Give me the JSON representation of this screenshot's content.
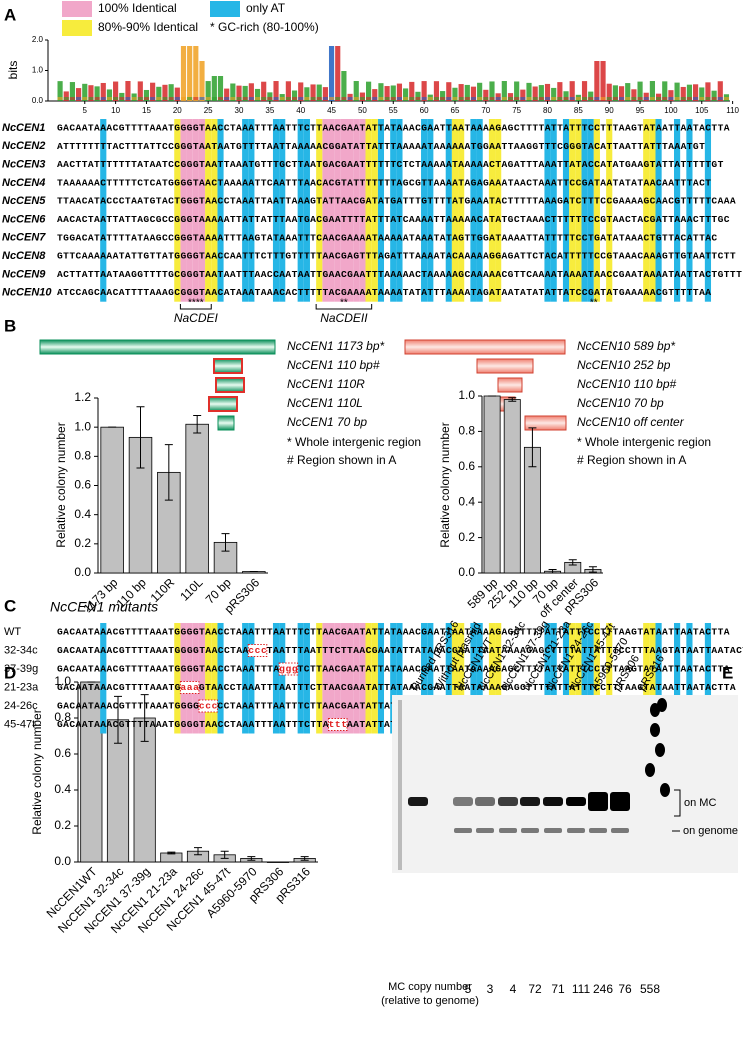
{
  "panel_labels": [
    "A",
    "B",
    "C",
    "D",
    "E"
  ],
  "panel_a": {
    "legend": [
      {
        "label": "100% Identical",
        "color": "#f1a7c9"
      },
      {
        "label": "only AT",
        "color": "#26b6e6"
      },
      {
        "label": "80%-90% Identical",
        "color": "#f7ec3d"
      },
      {
        "label": "* GC-rich (80-100%)",
        "color": null
      }
    ],
    "logo": {
      "ylabel": "bits",
      "ylim": [
        0,
        2
      ],
      "yticks": [
        {
          "value": 0,
          "label": "0.0"
        },
        {
          "value": 1,
          "label": "1.0"
        },
        {
          "value": 2,
          "label": "2.0"
        }
      ],
      "xticks": [
        5,
        10,
        15,
        20,
        25,
        30,
        35,
        40,
        45,
        50,
        55,
        60,
        65,
        70,
        75,
        80,
        85,
        90,
        95,
        100,
        105,
        110
      ]
    },
    "sequences": [
      {
        "name": "NcCEN1",
        "seq": "GACAATAAACGTTTTAAATGGGGTAACCTAAATTTAATTTCTTAACGAATATTATAAACGAATTAATAAAAGAGCTTTTATTATTTCCTTTAAGTATAATTAATACTTA"
      },
      {
        "name": "NcCEN2",
        "seq": "ATTTTTTTTACTTTATTCCGGGTAATAATGTTTTAATTAAAAACGGATATTATTTAAAAATAAAAAATGGAATTAAGGTTTCGGGTACATTAATTATTTAAATGT"
      },
      {
        "name": "NcCEN3",
        "seq": "AACTTATTTTTTTATAATCCGGGTAATTAAATGTTTGCTTAATGACGAATTTTTTCTCTAAAAATAAAAACTAGATTTAAATTATACCATATGAAGTATTATTTTTGT"
      },
      {
        "name": "NcCEN4",
        "seq": "TAAAAAACTTTTTCTCATGGGGTAACTAAAAATTCAATTTAACACGTATTTTTTTAGCGTTAAAATAGAGAAATAACTAAATTCCGATAATATATAACAATTTACT"
      },
      {
        "name": "NcCEN5",
        "seq": "TTAACATACCCTAATGTACTGGGTAACCTAAATTAATTAAAGTATTAACGATATGATTTGTTTTATGAAATACTTTTTAAAGATCTTTCCGAAAAGCAACGTTTTTCAAA"
      },
      {
        "name": "NcCEN6",
        "seq": "AACACTAATTATTAGCGCCGGGTAAAAATTATTATTTAATGACGAATTTTATTTATCAAAATTAAAAACATATGCTAAACTTTTTTCCGTAACTACGATTAAACTTTGC"
      },
      {
        "name": "NcCEN7",
        "seq": "TGGACATATTTTATAAGCCGGGTAAAATTTAAGTATAAATTTCAACGAAAATAAAAATAAATATAGTTGGATAAAATTATTTTTCCTGATATAAACTGTTACATTAC"
      },
      {
        "name": "NcCEN8",
        "seq": "GTTCAAAAAATATTGTTATGGGGTAACCAATTTCTTTGTTTTTAACGAGTTTAGATTTAAAATACAAAAAGGAGATTCTACATTTTTCCGTAAACAAAGTTGTAATTCTT"
      },
      {
        "name": "NcCEN9",
        "seq": "ACTTATTAATAAGGTTTTGCGGGTAATAATTTAACCAATAATTGAACGAATTTAAAAACTAAAAAGCAAAAACGTTCAAAATAAAATAACCGAATAAAATAATTACTGTTT"
      },
      {
        "name": "NcCEN10",
        "seq": "ATCCAGCAACATTTTAAAGCGGGTAACATAAATAAACACTTTTTACGAAAATAAAATATATTTAAAATAGATAATATATATTATCCGATATGAAAAACGTTTTTAA"
      }
    ],
    "brackets": [
      {
        "stars": "****",
        "label": "NaCDEI"
      },
      {
        "stars": "**",
        "label": "NaCDEII"
      }
    ],
    "extra_stars": "**"
  },
  "panel_b": {
    "constructs_left": [
      "NcCEN1 1173 bp*",
      "NcCEN1 110 bp#",
      "NcCEN1 110R",
      "NcCEN1 110L",
      "NcCEN1 70 bp"
    ],
    "constructs_right": [
      "NcCEN10 589 bp*",
      "NcCEN10 252 bp",
      "NcCEN10 110 bp#",
      "NcCEN10 70 bp",
      "NcCEN10 off center"
    ],
    "notes": [
      "* Whole intergenic region",
      "# Region shown in A"
    ]
  },
  "panel_c": {
    "title": "NcCEN1 mutants",
    "wt_label": "WT",
    "mutants": [
      {
        "label": "32-34c",
        "before": "GACAATAAACGTTTTAAATGGGGTAACCTAA",
        "mut": "ccc",
        "after": "TAATTTAATTTCTTAACGAATATTATAAACGAATTAATAAAAGAGCTTTTATTATTTCCTTTAAGTATAATTAATACTTA"
      },
      {
        "label": "37-39g",
        "before": "GACAATAAACGTTTTAAATGGGGTAACCTAAATTTA",
        "mut": "ggg",
        "after": "TCTTAACGAATATTATAAACGAATTAATAAAAGAGCTTTTATTATTTCCTTTAAGTATAATTAATACTTA"
      },
      {
        "label": "21-23a",
        "before": "GACAATAAACGTTTTAAATG",
        "mut": "aaa",
        "after": "GTAACCTAAATTTAATTTCTTAACGAATATTATAAACGAATTAATAAAAGAGCTTTTATTATTTCCTTTAAGTATAATTAATACTTA"
      },
      {
        "label": "24-26c",
        "before": "GACAATAAACGTTTTAAATGGGG",
        "mut": "ccc",
        "after": "CCTAAATTTAATTTCTTAACGAATATTATAAACGAATTAATAAAAGAGCTTTTATTATTTCCTTTAAGTATAATTAATACTTA"
      },
      {
        "label": "45-47t",
        "before": "GACAATAAACGTTTTAAATGGGGTAACCTAAATTTAATTTCTTA",
        "mut": "ttt",
        "after": "AATATTATAAACGAATTAATAAAAGAGCTTTTATTATTTCCTTTAAGTATAATTAATACTTA"
      }
    ]
  },
  "panel_e": {
    "lanes": [
      "Purified pRS316",
      "Without plasmid",
      "NcCEN1WT",
      "NcCEN1 32-34c",
      "NcCEN1 37-39g",
      "NcCEN1 21-23a",
      "NcCEN1 24-26c",
      "NcCEN1 45-47t",
      "A5960-5970",
      "pRS306",
      "pRS316"
    ],
    "band_labels": [
      "on MC",
      "on genome"
    ],
    "copy_label": [
      "MC copy number",
      "(relative to genome)"
    ],
    "copy_numbers": [
      5,
      3,
      4,
      72,
      71,
      111,
      246,
      76,
      558
    ]
  },
  "chart_data": [
    {
      "type": "bar",
      "ylabel": "Relative colony number",
      "color": "#c0c0c0",
      "categories": [
        "1173 bp",
        "110 bp",
        "110R",
        "110L",
        "70 bp",
        "pRS306"
      ],
      "values": [
        1.0,
        0.93,
        0.69,
        1.02,
        0.21,
        0.01
      ],
      "errors": [
        0,
        0.21,
        0.19,
        0.06,
        0.06,
        0
      ],
      "ylim": [
        0,
        1.2
      ],
      "yticks": [
        {
          "value": 0,
          "label": "0.0"
        },
        {
          "value": 0.2,
          "label": "0.2"
        },
        {
          "value": 0.4,
          "label": "0.4"
        },
        {
          "value": 0.6,
          "label": "0.6"
        },
        {
          "value": 0.8,
          "label": "0.8"
        },
        {
          "value": 1,
          "label": "1.0"
        },
        {
          "value": 1.2,
          "label": "1.2"
        }
      ]
    },
    {
      "type": "bar",
      "ylabel": "Relative colony number",
      "color": "#c0c0c0",
      "categories": [
        "589 bp",
        "252 bp",
        "110 bp",
        "70 bp",
        "off center",
        "pRS306"
      ],
      "values": [
        1.0,
        0.98,
        0.71,
        0.01,
        0.06,
        0.02
      ],
      "errors": [
        0,
        0.01,
        0.11,
        0.01,
        0.015,
        0.015
      ],
      "ylim": [
        0,
        1
      ],
      "yticks": [
        {
          "value": 0,
          "label": "0.0"
        },
        {
          "value": 0.2,
          "label": "0.2"
        },
        {
          "value": 0.4,
          "label": "0.4"
        },
        {
          "value": 0.6,
          "label": "0.6"
        },
        {
          "value": 0.8,
          "label": "0.8"
        },
        {
          "value": 1,
          "label": "1.0"
        }
      ]
    },
    {
      "type": "bar",
      "ylabel": "Relative colony number",
      "color": "#c0c0c0",
      "categories": [
        "NcCEN1WT",
        "NcCEN1 32-34c",
        "NcCEN1 37-39g",
        "NcCEN1 21-23a",
        "NcCEN1 24-26c",
        "NcCEN1 45-47t",
        "A5960-5970",
        "pRS306",
        "pRS316"
      ],
      "values": [
        1.0,
        0.79,
        0.8,
        0.05,
        0.06,
        0.04,
        0.02,
        0.0,
        0.02
      ],
      "errors": [
        0,
        0.13,
        0.13,
        0.005,
        0.02,
        0.02,
        0.01,
        0,
        0.01
      ],
      "ylim": [
        0,
        1
      ],
      "yticks": [
        {
          "value": 0,
          "label": "0.0"
        },
        {
          "value": 0.2,
          "label": "0.2"
        },
        {
          "value": 0.4,
          "label": "0.4"
        },
        {
          "value": 0.6,
          "label": "0.6"
        },
        {
          "value": 0.8,
          "label": "0.8"
        },
        {
          "value": 1,
          "label": "1.0"
        }
      ]
    }
  ]
}
